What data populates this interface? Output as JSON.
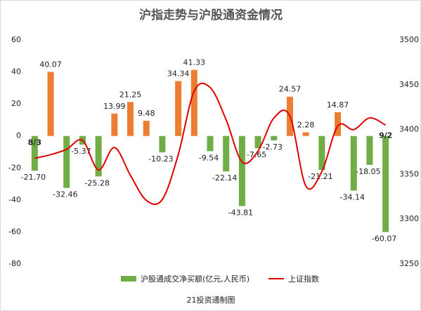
{
  "chart_data": {
    "type": "bar-line",
    "title": "沪指走势与沪股通资金情况",
    "source": "21投资通制图",
    "categories": [
      "8/3",
      null,
      null,
      null,
      null,
      null,
      null,
      null,
      null,
      null,
      null,
      null,
      null,
      null,
      null,
      null,
      null,
      null,
      null,
      null,
      null,
      null,
      "9/2"
    ],
    "series": [
      {
        "name": "沪股通成交净买额(亿元,人民币)",
        "type": "bar",
        "color": "#70ad47",
        "positive_color": "#ed7d31",
        "values": [
          -21.7,
          40.07,
          -32.46,
          -5.37,
          -25.28,
          13.99,
          21.25,
          9.48,
          -10.23,
          34.34,
          41.33,
          -9.54,
          -22.14,
          -43.81,
          -7.65,
          -2.73,
          24.57,
          2.28,
          -21.21,
          14.87,
          -34.14,
          -18.05,
          -60.07
        ],
        "value_labels": [
          "-21.70",
          "40.07",
          "-32.46",
          "-5.37",
          "-25.28",
          "13.99",
          "21.25",
          "9.48",
          "-10.23",
          "34.34",
          "41.33",
          "-9.54",
          "-22.14",
          "-43.81",
          "-7.65",
          "-2.73",
          "24.57",
          "2.28",
          "-21.21",
          "14.87",
          "-34.14",
          "-18.05",
          "-60.07"
        ]
      },
      {
        "name": "上证指数",
        "type": "line",
        "color": "#e00000",
        "axis": "y2",
        "values": [
          3368,
          3372,
          3378,
          3388,
          3355,
          3380,
          3349,
          3321,
          3322,
          3372,
          3443,
          3447,
          3411,
          3364,
          3376,
          3413,
          3415,
          3337,
          3353,
          3404,
          3400,
          3413,
          3405
        ]
      }
    ],
    "ylim": [
      -80,
      60
    ],
    "yticks": [
      -80,
      -60,
      -40,
      -20,
      0,
      20,
      40,
      60
    ],
    "y2lim": [
      3250,
      3500
    ],
    "y2ticks": [
      3250,
      3300,
      3350,
      3400,
      3450,
      3500
    ]
  }
}
